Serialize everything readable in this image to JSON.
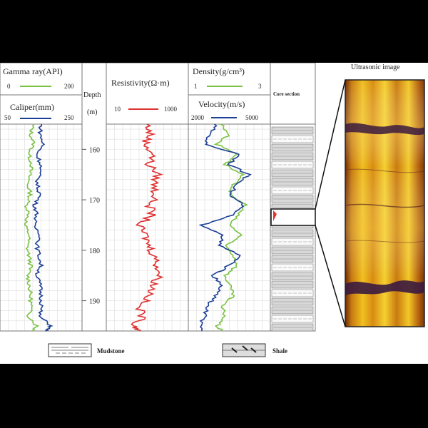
{
  "tracks": {
    "gamma": {
      "label": "Gamma ray(API)",
      "min": "0",
      "max": "200",
      "color": "#7ac143"
    },
    "caliper": {
      "label": "Caliper(mm)",
      "min": "50",
      "max": "250",
      "color": "#1c3f95"
    },
    "depth": {
      "label1": "Depth",
      "label2": "(m)",
      "ticks": [
        "160",
        "170",
        "180",
        "190"
      ]
    },
    "resistivity": {
      "label": "Resistivity(Ω·m)",
      "min": "10",
      "max": "1000",
      "color": "#e03030"
    },
    "density": {
      "label": "Density(g/cm³)",
      "min": "1",
      "max": "3",
      "color": "#7ac143"
    },
    "velocity": {
      "label": "Velocity(m/s)",
      "min": "2000",
      "max": "5000",
      "color": "#1c3f95"
    },
    "core": {
      "label": "Core section"
    },
    "ultrasonic": {
      "label": "Ultrasonic image"
    }
  },
  "legend": {
    "mudstone": "Mudstone",
    "shale": "Shale"
  },
  "chart_data": {
    "type": "line",
    "depth_range": [
      155,
      196
    ],
    "depth_ticks": [
      160,
      170,
      180,
      190
    ],
    "series": [
      {
        "name": "Gamma ray(API)",
        "unit": "API",
        "range": [
          0,
          200
        ],
        "depth": [
          155,
          157,
          159,
          161,
          163,
          165,
          167,
          169,
          171,
          173,
          175,
          177,
          179,
          181,
          183,
          185,
          187,
          189,
          191,
          193,
          195,
          196
        ],
        "values": [
          80,
          75,
          82,
          70,
          78,
          72,
          68,
          74,
          65,
          70,
          60,
          72,
          66,
          70,
          75,
          68,
          72,
          74,
          76,
          70,
          90,
          80
        ]
      },
      {
        "name": "Caliper(mm)",
        "unit": "mm",
        "range": [
          50,
          250
        ],
        "depth": [
          155,
          157,
          159,
          161,
          163,
          165,
          167,
          169,
          171,
          173,
          175,
          177,
          179,
          181,
          183,
          185,
          187,
          189,
          191,
          193,
          195,
          196
        ],
        "values": [
          150,
          148,
          155,
          140,
          150,
          145,
          140,
          148,
          135,
          140,
          132,
          150,
          140,
          145,
          150,
          140,
          148,
          150,
          152,
          145,
          175,
          160
        ]
      },
      {
        "name": "Resistivity(Ω·m)",
        "unit": "Ω·m",
        "range": [
          10,
          1000
        ],
        "depth": [
          155,
          157,
          159,
          161,
          163,
          165,
          167,
          169,
          171,
          173,
          175,
          177,
          179,
          181,
          183,
          185,
          187,
          189,
          191,
          193,
          195,
          196
        ],
        "values": [
          100,
          120,
          90,
          140,
          110,
          180,
          150,
          160,
          120,
          130,
          60,
          90,
          110,
          150,
          180,
          200,
          140,
          120,
          60,
          80,
          50,
          70
        ]
      },
      {
        "name": "Density(g/cm³)",
        "unit": "g/cm³",
        "range": [
          1,
          3
        ],
        "depth": [
          155,
          157,
          159,
          161,
          163,
          165,
          167,
          169,
          171,
          173,
          175,
          177,
          179,
          181,
          183,
          185,
          187,
          189,
          191,
          193,
          195,
          196
        ],
        "values": [
          1.8,
          2.0,
          1.7,
          2.2,
          1.9,
          2.3,
          2.1,
          2.0,
          2.4,
          2.2,
          2.0,
          2.3,
          1.9,
          2.1,
          2.2,
          1.9,
          2.0,
          2.1,
          1.8,
          1.9,
          1.7,
          1.8
        ]
      },
      {
        "name": "Velocity(m/s)",
        "unit": "m/s",
        "range": [
          2000,
          5000
        ],
        "depth": [
          155,
          157,
          159,
          161,
          163,
          165,
          167,
          169,
          171,
          173,
          175,
          177,
          179,
          181,
          183,
          185,
          187,
          189,
          191,
          193,
          195,
          196
        ],
        "values": [
          3000,
          2800,
          2600,
          3900,
          3500,
          4200,
          3800,
          3500,
          4000,
          3600,
          2500,
          3300,
          3100,
          3900,
          3500,
          2900,
          3200,
          3000,
          2700,
          2600,
          2400,
          2500
        ]
      }
    ]
  }
}
